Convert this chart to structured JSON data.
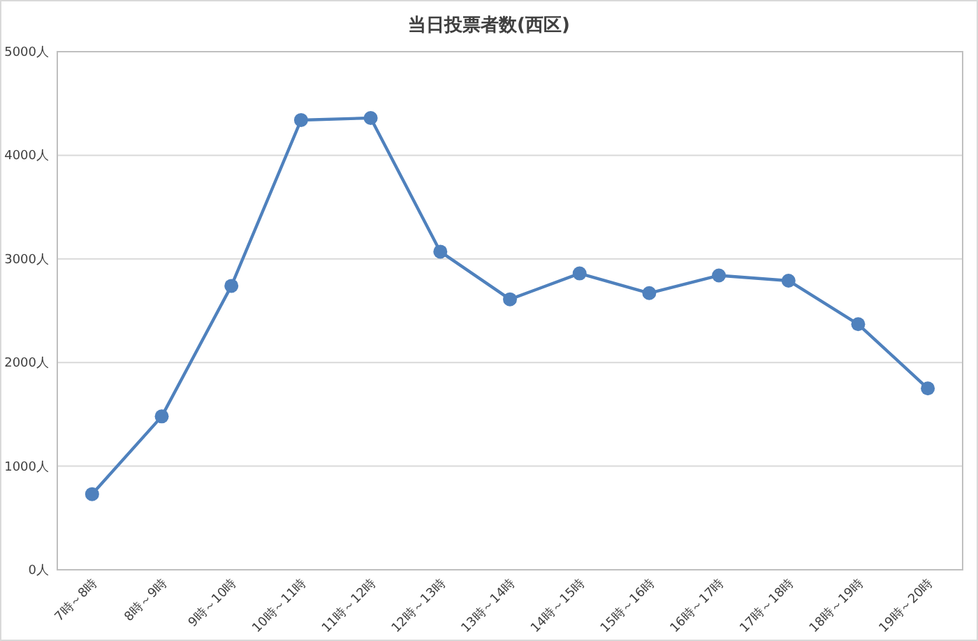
{
  "chart_data": {
    "type": "line",
    "title": "当日投票者数(西区)",
    "categories": [
      "7時～8時",
      "8時～9時",
      "9時～10時",
      "10時～11時",
      "11時～12時",
      "12時～13時",
      "13時～14時",
      "14時～15時",
      "15時～16時",
      "16時～17時",
      "17時～18時",
      "18時～19時",
      "19時～20時"
    ],
    "series": [
      {
        "color": "#4f81bd",
        "values": [
          730,
          1480,
          2740,
          4340,
          4360,
          3070,
          2610,
          2860,
          2670,
          2840,
          2790,
          2370,
          1750
        ]
      }
    ],
    "ylim": [
      0,
      5000
    ],
    "yticks": [
      {
        "value": 0,
        "label": "0人"
      },
      {
        "value": 1000,
        "label": "1000人"
      },
      {
        "value": 2000,
        "label": "2000人"
      },
      {
        "value": 3000,
        "label": "3000人"
      },
      {
        "value": 4000,
        "label": "4000人"
      },
      {
        "value": 5000,
        "label": "5000人"
      }
    ],
    "grid": "y",
    "marker": "circle",
    "line_style": "solid"
  }
}
